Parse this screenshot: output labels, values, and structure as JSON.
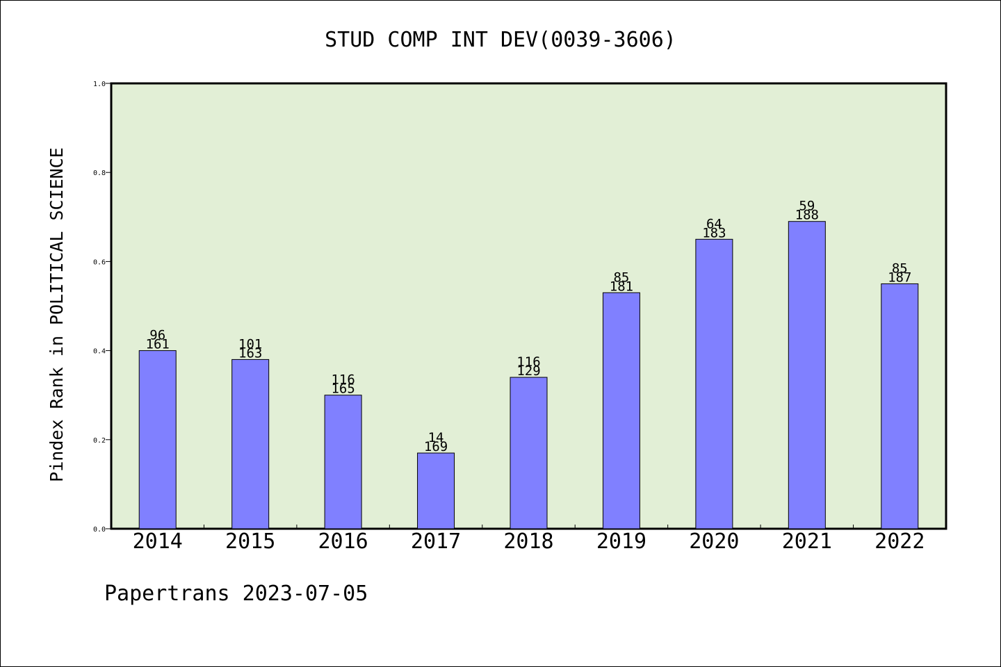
{
  "chart_data": {
    "type": "bar",
    "title": "STUD COMP INT DEV(0039-3606)",
    "xlabel": "",
    "ylabel": "Pindex Rank in POLITICAL SCIENCE",
    "categories": [
      "2014",
      "2015",
      "2016",
      "2017",
      "2018",
      "2019",
      "2020",
      "2021",
      "2022"
    ],
    "values": [
      0.4,
      0.38,
      0.3,
      0.17,
      0.34,
      0.53,
      0.65,
      0.69,
      0.55
    ],
    "bar_labels_top": [
      "96",
      "101",
      "116",
      "14",
      "116",
      "85",
      "64",
      "59",
      "85"
    ],
    "bar_labels_bottom": [
      "161",
      "163",
      "165",
      "169",
      "129",
      "181",
      "183",
      "188",
      "187"
    ],
    "ylim": [
      0,
      1.0
    ],
    "yticks": [
      "0.0",
      "0.2",
      "0.4",
      "0.6",
      "0.8",
      "1.0"
    ],
    "grid": false,
    "colors": {
      "bar": "#8080ff",
      "plot_background": "#e2efd6",
      "axis": "#000000"
    }
  },
  "footer": {
    "text": "Papertrans 2023-07-05"
  }
}
